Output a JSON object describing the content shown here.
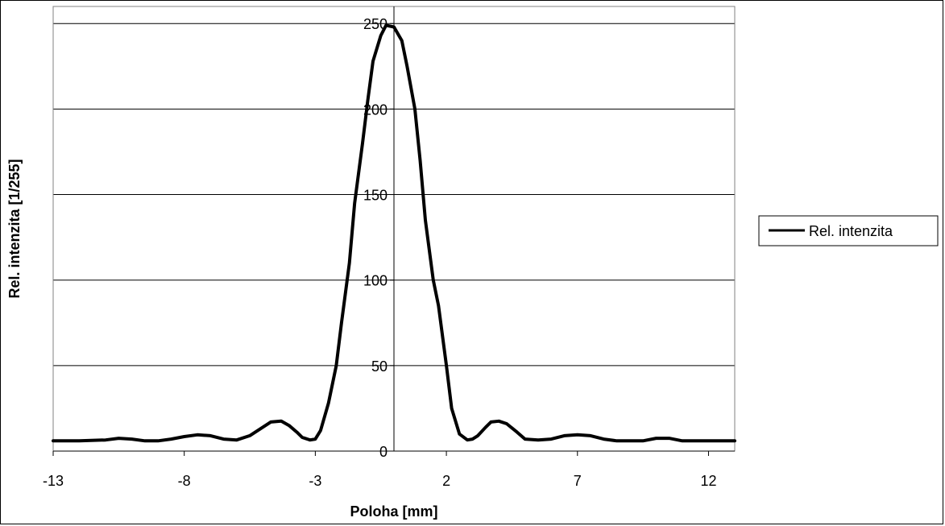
{
  "chart_data": {
    "type": "line",
    "title": "",
    "xlabel": "Poloha [mm]",
    "ylabel": "Rel. intenzita [1/255]",
    "xlim": [
      -13,
      13
    ],
    "ylim": [
      0,
      260
    ],
    "x_ticks": [
      -13,
      -8,
      -3,
      2,
      7,
      12
    ],
    "y_ticks": [
      0,
      50,
      100,
      150,
      200,
      250
    ],
    "grid": {
      "horizontal": true,
      "vertical": false
    },
    "legend_position": "right",
    "series": [
      {
        "name": "Rel. intenzita",
        "color": "#000000",
        "x": [
          -13,
          -12,
          -11,
          -10.5,
          -10,
          -9.5,
          -9,
          -8.5,
          -8,
          -7.5,
          -7,
          -6.5,
          -6,
          -5.5,
          -5,
          -4.7,
          -4.3,
          -4,
          -3.7,
          -3.5,
          -3.2,
          -3,
          -2.8,
          -2.5,
          -2.2,
          -2,
          -1.7,
          -1.5,
          -1.2,
          -1,
          -0.8,
          -0.5,
          -0.3,
          0,
          0.3,
          0.5,
          0.8,
          1,
          1.2,
          1.5,
          1.7,
          2,
          2.2,
          2.5,
          2.8,
          3,
          3.2,
          3.5,
          3.7,
          4,
          4.3,
          4.7,
          5,
          5.5,
          6,
          6.5,
          7,
          7.5,
          8,
          8.5,
          9,
          9.5,
          10,
          10.5,
          11,
          12,
          13
        ],
        "y": [
          6,
          6,
          6.5,
          7.5,
          7,
          6,
          6,
          7,
          8.5,
          9.5,
          9,
          7,
          6.5,
          9,
          14,
          17,
          17.5,
          15,
          11,
          8,
          6.5,
          7,
          12,
          28,
          50,
          75,
          110,
          145,
          180,
          205,
          228,
          243,
          249,
          248,
          240,
          225,
          200,
          170,
          135,
          100,
          85,
          50,
          25,
          10,
          6.5,
          7,
          9,
          14,
          17,
          17.5,
          16,
          11,
          7,
          6.5,
          7,
          9,
          9.5,
          9,
          7,
          6,
          6,
          6,
          7.5,
          7.5,
          6,
          6,
          6
        ]
      }
    ]
  }
}
